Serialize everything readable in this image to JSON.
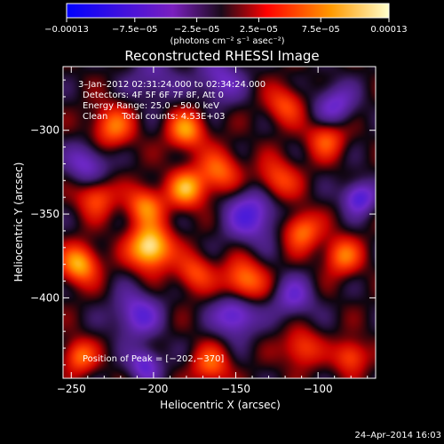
{
  "chart_data": {
    "type": "heatmap",
    "title": "Reconstructed RHESSI Image",
    "xlabel": "Heliocentric X (arcsec)",
    "ylabel": "Heliocentric Y (arcsec)",
    "xlim": [
      -255,
      -65
    ],
    "ylim": [
      -448,
      -262
    ],
    "x_ticks": [
      -250,
      -200,
      -150,
      -100
    ],
    "x_tick_labels": [
      "−250",
      "−200",
      "−150",
      "−100"
    ],
    "y_ticks": [
      -300,
      -350,
      -400
    ],
    "y_tick_labels": [
      "−300",
      "−350",
      "−400"
    ],
    "colorbar": {
      "min": -0.00013,
      "max": 0.00013,
      "ticks": [
        -0.00013,
        -7.5e-05,
        -2.5e-05,
        2.5e-05,
        7.5e-05,
        0.00013
      ],
      "tick_labels": [
        "−0.00013",
        "−7.5e−05",
        "−2.5e−05",
        "2.5e−05",
        "7.5e−05",
        "0.00013"
      ],
      "unit": "(photons cm⁻² s⁻¹ asec⁻²)",
      "colors": [
        "#0000ff",
        "#7a1fbf",
        "#1a0a1a",
        "#ff0000",
        "#ff9900",
        "#ffff99"
      ]
    },
    "annotations": [
      "3–Jan–2012 02:31:24.000 to 02:34:24.000",
      "Detectors: 4F 5F 6F 7F 8F, Att 0",
      "Energy Range: 25.0 – 50.0 keV",
      "Clean     Total counts: 4.53E+03"
    ],
    "peak_label": "Position of Peak = [−202,−370]",
    "peak": [
      -202,
      -370
    ],
    "blobs": [
      {
        "x": -202,
        "y": -370,
        "amp": 1.0,
        "s": 9
      },
      {
        "x": -245,
        "y": -380,
        "amp": 0.75,
        "s": 8
      },
      {
        "x": -225,
        "y": -298,
        "amp": 0.55,
        "s": 9
      },
      {
        "x": -205,
        "y": -345,
        "amp": 0.6,
        "s": 8
      },
      {
        "x": -180,
        "y": -300,
        "amp": 0.65,
        "s": 8
      },
      {
        "x": -180,
        "y": -335,
        "amp": 0.7,
        "s": 8
      },
      {
        "x": -160,
        "y": -325,
        "amp": 0.55,
        "s": 9
      },
      {
        "x": -175,
        "y": -385,
        "amp": 0.45,
        "s": 8
      },
      {
        "x": -145,
        "y": -390,
        "amp": 0.65,
        "s": 9
      },
      {
        "x": -125,
        "y": -330,
        "amp": 0.5,
        "s": 9
      },
      {
        "x": -110,
        "y": -360,
        "amp": 0.6,
        "s": 8
      },
      {
        "x": -95,
        "y": -305,
        "amp": 0.5,
        "s": 8
      },
      {
        "x": -85,
        "y": -375,
        "amp": 0.55,
        "s": 8
      },
      {
        "x": -120,
        "y": -285,
        "amp": 0.45,
        "s": 8
      },
      {
        "x": -235,
        "y": -340,
        "amp": 0.5,
        "s": 8
      },
      {
        "x": -245,
        "y": -435,
        "amp": 0.55,
        "s": 7
      },
      {
        "x": -165,
        "y": -440,
        "amp": 0.5,
        "s": 8
      },
      {
        "x": -110,
        "y": -430,
        "amp": 0.45,
        "s": 8
      },
      {
        "x": -80,
        "y": -435,
        "amp": 0.5,
        "s": 7
      },
      {
        "x": -210,
        "y": -410,
        "amp": -0.5,
        "s": 10
      },
      {
        "x": -140,
        "y": -350,
        "amp": -0.55,
        "s": 12
      },
      {
        "x": -150,
        "y": -410,
        "amp": -0.6,
        "s": 9
      },
      {
        "x": -90,
        "y": -285,
        "amp": -0.45,
        "s": 9
      },
      {
        "x": -75,
        "y": -340,
        "amp": -0.6,
        "s": 7
      },
      {
        "x": -160,
        "y": -270,
        "amp": -0.4,
        "s": 10
      },
      {
        "x": -240,
        "y": -320,
        "amp": -0.45,
        "s": 9
      },
      {
        "x": -205,
        "y": -440,
        "amp": -0.5,
        "s": 7
      },
      {
        "x": -115,
        "y": -400,
        "amp": -0.4,
        "s": 9
      },
      {
        "x": -200,
        "y": -270,
        "amp": -0.3,
        "s": 10
      }
    ]
  },
  "timestamp": "24–Apr–2014 16:03"
}
